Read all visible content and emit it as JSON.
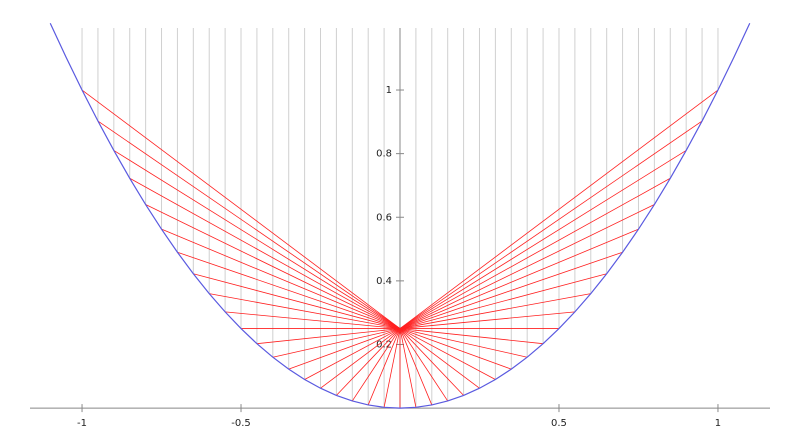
{
  "chart_data": {
    "type": "line",
    "xlim": [
      -1.258,
      1.258
    ],
    "ylim": [
      -0.094,
      1.283
    ],
    "xticks": [
      -1,
      -0.5,
      0.5,
      1
    ],
    "yticks": [
      0.2,
      0.4,
      0.6,
      0.8,
      1
    ],
    "series": [
      {
        "name": null,
        "color": "#5a5ae0",
        "x": [
          -1.1,
          -1.05,
          -1,
          -0.95,
          -0.9,
          -0.85,
          -0.8,
          -0.75,
          -0.7,
          -0.65,
          -0.6,
          -0.55,
          -0.5,
          -0.45,
          -0.4,
          -0.35,
          -0.3,
          -0.25,
          -0.2,
          -0.15,
          -0.1,
          -0.05,
          0,
          0.05,
          0.1,
          0.15,
          0.2,
          0.25,
          0.3,
          0.35,
          0.4,
          0.45,
          0.5,
          0.55,
          0.6,
          0.65,
          0.7,
          0.75,
          0.8,
          0.85,
          0.9,
          0.95,
          1,
          1.05,
          1.1
        ],
        "values": [
          1.21,
          1.1025,
          1,
          0.9025,
          0.81,
          0.7225,
          0.64,
          0.5625,
          0.49,
          0.4225,
          0.36,
          0.3025,
          0.25,
          0.2025,
          0.16,
          0.1225,
          0.09,
          0.0625,
          0.04,
          0.0225,
          0.01,
          0.0025,
          0,
          0.0025,
          0.01,
          0.0225,
          0.04,
          0.0625,
          0.09,
          0.1225,
          0.16,
          0.2025,
          0.25,
          0.3025,
          0.36,
          0.4225,
          0.49,
          0.5625,
          0.64,
          0.7225,
          0.81,
          0.9025,
          1,
          1.1025,
          1.21
        ]
      }
    ],
    "rays": {
      "color": "#ff2020",
      "x": [
        -1,
        -0.95,
        -0.9,
        -0.85,
        -0.8,
        -0.75,
        -0.7,
        -0.65,
        -0.6,
        -0.55,
        -0.5,
        -0.45,
        -0.4,
        -0.35,
        -0.3,
        -0.25,
        -0.2,
        -0.15,
        -0.1,
        -0.05,
        0,
        0.05,
        0.1,
        0.15,
        0.2,
        0.25,
        0.3,
        0.35,
        0.4,
        0.45,
        0.5,
        0.55,
        0.6,
        0.65,
        0.7,
        0.75,
        0.8,
        0.85,
        0.9,
        0.95,
        1
      ],
      "values": [
        1,
        0.9025,
        0.81,
        0.7225,
        0.64,
        0.5625,
        0.49,
        0.4225,
        0.36,
        0.3025,
        0.25,
        0.2025,
        0.16,
        0.1225,
        0.09,
        0.0625,
        0.04,
        0.0225,
        0.01,
        0.0025,
        0,
        0.0025,
        0.01,
        0.0225,
        0.04,
        0.0625,
        0.09,
        0.1225,
        0.16,
        0.2025,
        0.25,
        0.3025,
        0.36,
        0.4225,
        0.49,
        0.5625,
        0.64,
        0.7225,
        0.81,
        0.9025,
        1
      ],
      "focus": [
        0,
        0.25
      ]
    }
  }
}
